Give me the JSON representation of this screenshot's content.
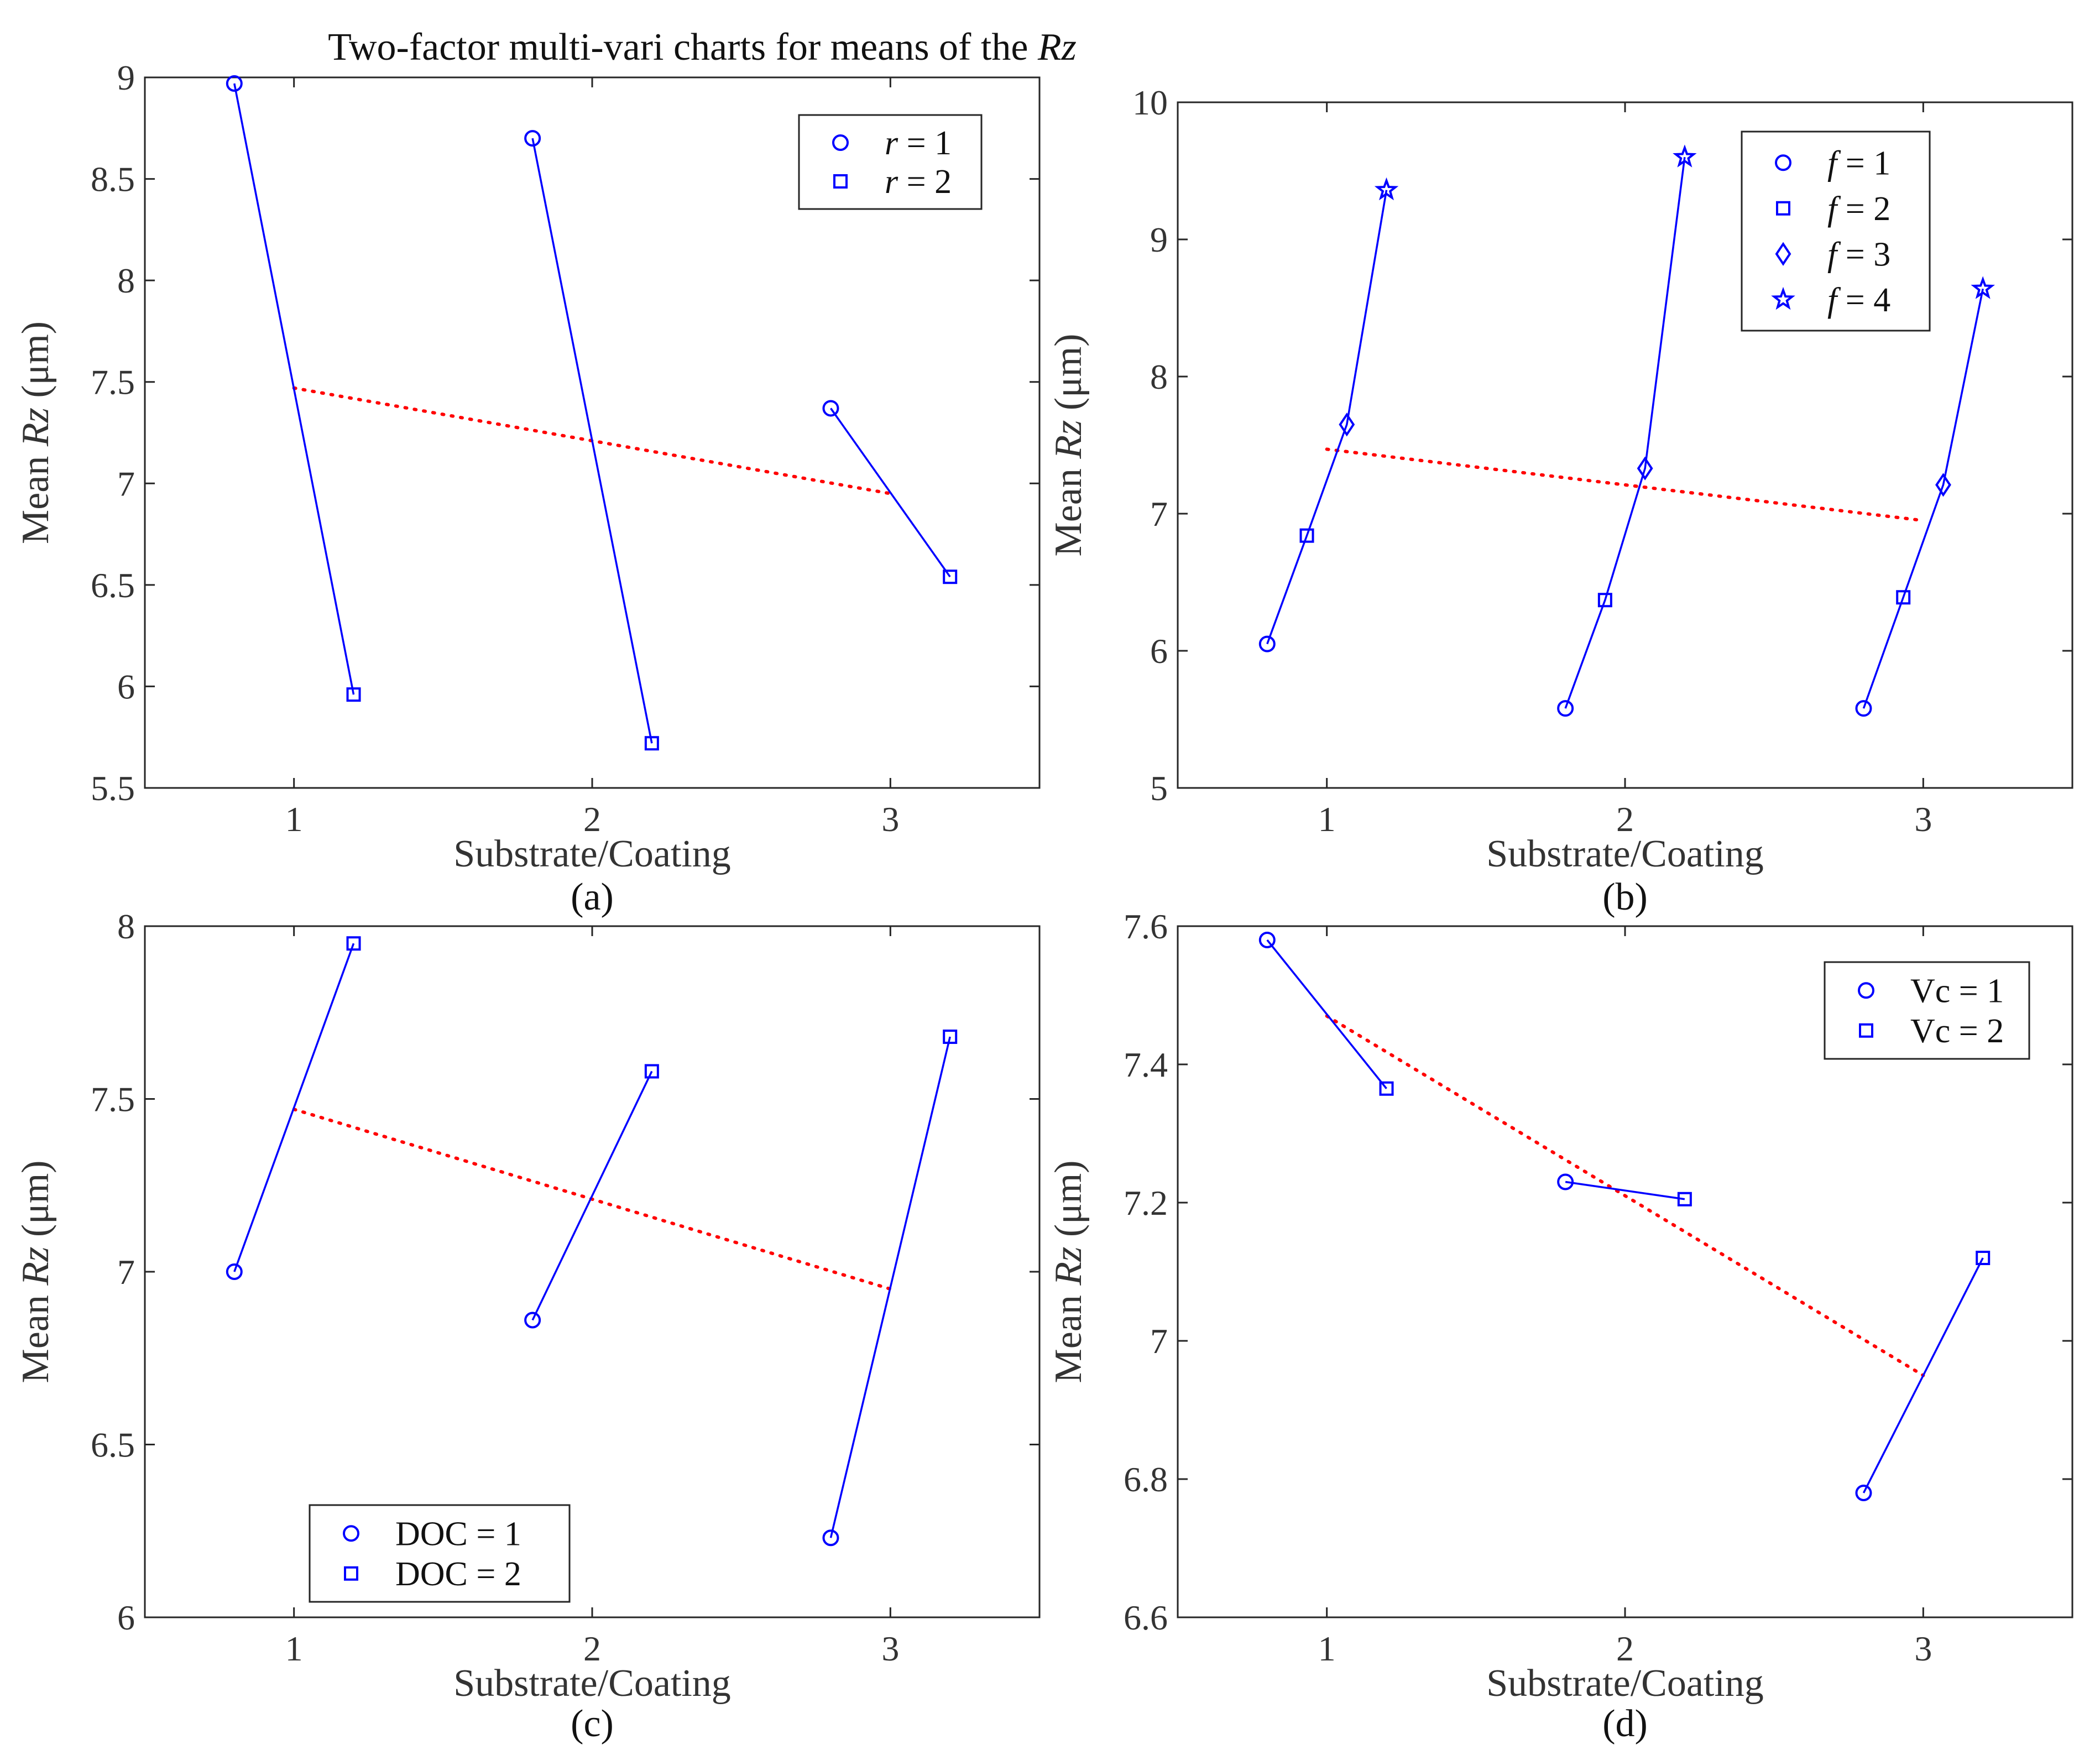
{
  "figure": {
    "title": "Two-factor multi-vari charts for means of the Rz"
  },
  "colors": {
    "series": "#0000ff",
    "means": "#ff0000",
    "axis": "#262626"
  },
  "chart_data": [
    {
      "type": "line",
      "caption": "(a)",
      "xlabel": "Substrate/Coating",
      "ylabel": "Mean Rz (μm)",
      "xlim": [
        0.5,
        3.5
      ],
      "ylim": [
        5.5,
        9
      ],
      "xticks": [
        1,
        2,
        3
      ],
      "xtick_labels": [
        "1",
        "2",
        "3"
      ],
      "yticks": [
        5.5,
        6,
        6.5,
        7,
        7.5,
        8,
        8.5,
        9
      ],
      "ytick_labels": [
        "5.5",
        "6",
        "6.5",
        "7",
        "7.5",
        "8",
        "8.5",
        "9"
      ],
      "legend_position": "top-right",
      "legend": [
        {
          "prefix": "r",
          "rest": " = 1",
          "marker": "circle"
        },
        {
          "prefix": "r",
          "rest": " = 2",
          "marker": "square"
        }
      ],
      "groups": [
        {
          "x": [
            0.8,
            1.2
          ],
          "y": [
            8.97,
            5.96
          ]
        },
        {
          "x": [
            1.8,
            2.2
          ],
          "y": [
            8.7,
            5.72
          ]
        },
        {
          "x": [
            2.8,
            3.2
          ],
          "y": [
            7.37,
            6.54
          ]
        }
      ],
      "means": {
        "x": [
          1,
          2,
          3
        ],
        "y": [
          7.47,
          7.21,
          6.95
        ]
      }
    },
    {
      "type": "line",
      "caption": "(b)",
      "xlabel": "Substrate/Coating",
      "ylabel": "Mean Rz (μm)",
      "xlim": [
        0.5,
        3.5
      ],
      "ylim": [
        5,
        10
      ],
      "xticks": [
        1,
        2,
        3
      ],
      "xtick_labels": [
        "1",
        "2",
        "3"
      ],
      "yticks": [
        5,
        6,
        7,
        8,
        9,
        10
      ],
      "ytick_labels": [
        "5",
        "6",
        "7",
        "8",
        "9",
        "10"
      ],
      "legend_position": "top-right",
      "legend": [
        {
          "prefix": "f",
          "rest": " = 1",
          "marker": "circle"
        },
        {
          "prefix": "f",
          "rest": " = 2",
          "marker": "square"
        },
        {
          "prefix": "f",
          "rest": " = 3",
          "marker": "diamond"
        },
        {
          "prefix": "f",
          "rest": " = 4",
          "marker": "star"
        }
      ],
      "groups": [
        {
          "x": [
            0.8,
            0.933,
            1.067,
            1.2
          ],
          "y": [
            6.05,
            6.84,
            7.65,
            9.36
          ]
        },
        {
          "x": [
            1.8,
            1.933,
            2.067,
            2.2
          ],
          "y": [
            5.58,
            6.37,
            7.33,
            9.6
          ]
        },
        {
          "x": [
            2.8,
            2.933,
            3.067,
            3.2
          ],
          "y": [
            5.58,
            6.39,
            7.21,
            8.64
          ]
        }
      ],
      "means": {
        "x": [
          1,
          2,
          3
        ],
        "y": [
          7.47,
          7.21,
          6.95
        ]
      }
    },
    {
      "type": "line",
      "caption": "(c)",
      "xlabel": "Substrate/Coating",
      "ylabel": "Mean Rz (μm)",
      "xlim": [
        0.5,
        3.5
      ],
      "ylim": [
        6,
        8
      ],
      "xticks": [
        1,
        2,
        3
      ],
      "xtick_labels": [
        "1",
        "2",
        "3"
      ],
      "yticks": [
        6,
        6.5,
        7,
        7.5,
        8
      ],
      "ytick_labels": [
        "6",
        "6.5",
        "7",
        "7.5",
        "8"
      ],
      "legend_position": "bottom-left",
      "legend": [
        {
          "prefix": "",
          "rest": "DOC = 1",
          "marker": "circle"
        },
        {
          "prefix": "",
          "rest": "DOC = 2",
          "marker": "square"
        }
      ],
      "groups": [
        {
          "x": [
            0.8,
            1.2
          ],
          "y": [
            7.0,
            7.95
          ]
        },
        {
          "x": [
            1.8,
            2.2
          ],
          "y": [
            6.86,
            7.58
          ]
        },
        {
          "x": [
            2.8,
            3.2
          ],
          "y": [
            6.23,
            7.68
          ]
        }
      ],
      "means": {
        "x": [
          1,
          2,
          3
        ],
        "y": [
          7.47,
          7.21,
          6.95
        ]
      }
    },
    {
      "type": "line",
      "caption": "(d)",
      "xlabel": "Substrate/Coating",
      "ylabel": "Mean Rz (μm)",
      "xlim": [
        0.5,
        3.5
      ],
      "ylim": [
        6.6,
        7.6
      ],
      "xticks": [
        1,
        2,
        3
      ],
      "xtick_labels": [
        "1",
        "2",
        "3"
      ],
      "yticks": [
        6.6,
        6.8,
        7,
        7.2,
        7.4,
        7.6
      ],
      "ytick_labels": [
        "6.6",
        "6.8",
        "7",
        "7.2",
        "7.4",
        "7.6"
      ],
      "legend_position": "top-right",
      "legend": [
        {
          "prefix": "",
          "rest": "Vc = 1",
          "marker": "circle"
        },
        {
          "prefix": "",
          "rest": "Vc = 2",
          "marker": "square"
        }
      ],
      "groups": [
        {
          "x": [
            0.8,
            1.2
          ],
          "y": [
            7.58,
            7.365
          ]
        },
        {
          "x": [
            1.8,
            2.2
          ],
          "y": [
            7.23,
            7.205
          ]
        },
        {
          "x": [
            2.8,
            3.2
          ],
          "y": [
            6.78,
            7.12
          ]
        }
      ],
      "means": {
        "x": [
          1,
          2,
          3
        ],
        "y": [
          7.47,
          7.21,
          6.95
        ]
      }
    }
  ]
}
